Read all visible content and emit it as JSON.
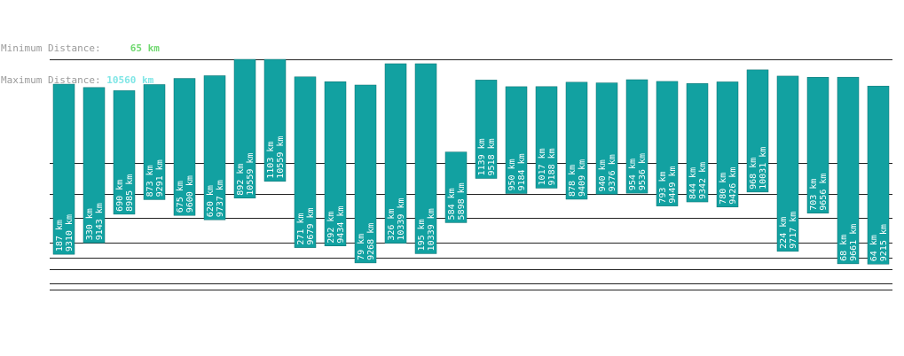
{
  "stats": {
    "min_label": "Minimum Distance:",
    "min_value": "65 km",
    "max_label": "Maximum Distance:",
    "max_value": "10560 km"
  },
  "colors": {
    "bar": "#12a1a1",
    "bar_stroke": "#0a6f6f",
    "grid": "#222222",
    "label": "#ffffff"
  },
  "chart_data": {
    "type": "bar",
    "title": "",
    "xlabel": "",
    "ylabel": "",
    "bars": [
      {
        "min": 187,
        "max": 9310
      },
      {
        "min": 330,
        "max": 9143
      },
      {
        "min": 690,
        "max": 8985
      },
      {
        "min": 873,
        "max": 9291
      },
      {
        "min": 675,
        "max": 9600
      },
      {
        "min": 620,
        "max": 9737
      },
      {
        "min": 892,
        "max": 10559
      },
      {
        "min": 1103,
        "max": 10559
      },
      {
        "min": 271,
        "max": 9679
      },
      {
        "min": 292,
        "max": 9434
      },
      {
        "min": 79,
        "max": 9268
      },
      {
        "min": 326,
        "max": 10339
      },
      {
        "min": 195,
        "max": 10339
      },
      {
        "min": 584,
        "max": 5898
      },
      {
        "min": 1139,
        "max": 9518
      },
      {
        "min": 950,
        "max": 9184
      },
      {
        "min": 1017,
        "max": 9188
      },
      {
        "min": 878,
        "max": 9409
      },
      {
        "min": 940,
        "max": 9376
      },
      {
        "min": 954,
        "max": 9536
      },
      {
        "min": 793,
        "max": 9449
      },
      {
        "min": 844,
        "max": 9342
      },
      {
        "min": 780,
        "max": 9426
      },
      {
        "min": 968,
        "max": 10031
      },
      {
        "min": 224,
        "max": 9717
      },
      {
        "min": 703,
        "max": 9656
      },
      {
        "min": 68,
        "max": 9661
      },
      {
        "min": 64,
        "max": 9215
      }
    ],
    "unit": "km"
  }
}
